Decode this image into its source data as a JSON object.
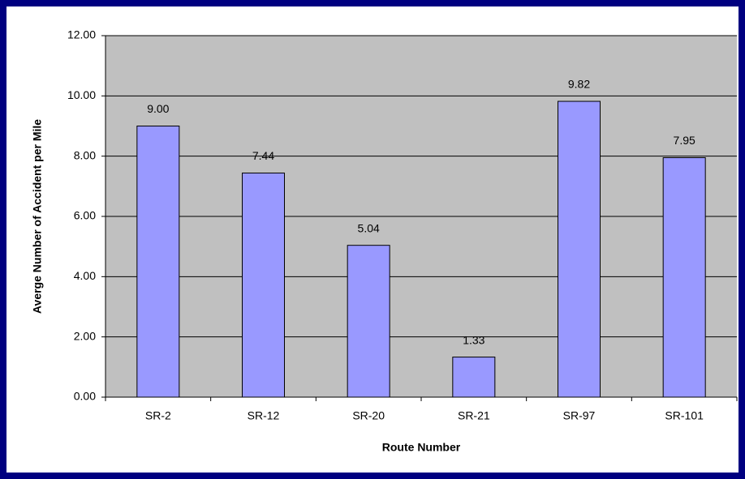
{
  "chart_data": {
    "type": "bar",
    "x_label": "Route Number",
    "y_label": "Averge Number of Accident per Mile",
    "categories": [
      "SR-2",
      "SR-12",
      "SR-20",
      "SR-21",
      "SR-97",
      "SR-101"
    ],
    "values": [
      9,
      7.44,
      5.04,
      1.33,
      9.82,
      7.95
    ],
    "value_labels": [
      "9.00",
      "7.44",
      "5.04",
      "1.33",
      "9.82",
      "7.95"
    ],
    "color": "#9999ff",
    "ylim": [
      0,
      12
    ],
    "yticks": [
      {
        "value": 0,
        "label": "0.00"
      },
      {
        "value": 2,
        "label": "2.00"
      },
      {
        "value": 4,
        "label": "4.00"
      },
      {
        "value": 6,
        "label": "6.00"
      },
      {
        "value": 8,
        "label": "8.00"
      },
      {
        "value": 10,
        "label": "10.00"
      },
      {
        "value": 12,
        "label": "12.00"
      }
    ],
    "grid": true
  }
}
